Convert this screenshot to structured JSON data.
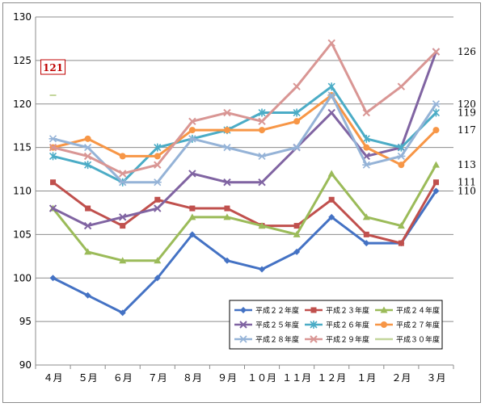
{
  "chart_data": {
    "type": "line",
    "categories": [
      "４月",
      "５月",
      "６月",
      "７月",
      "８月",
      "９月",
      "１０月",
      "１１月",
      "１２月",
      "１月",
      "２月",
      "３月"
    ],
    "ylim": [
      90,
      130
    ],
    "yticks": [
      90,
      95,
      100,
      105,
      110,
      115,
      120,
      125,
      130
    ],
    "grid": true,
    "legend_position": "bottom-right",
    "series": [
      {
        "name": "平成２２年度",
        "color": "#4472c4",
        "marker": "diamond",
        "values": [
          100,
          98,
          96,
          100,
          105,
          102,
          101,
          103,
          107,
          104,
          104,
          110
        ]
      },
      {
        "name": "平成２３年度",
        "color": "#c0504d",
        "marker": "square",
        "values": [
          111,
          108,
          106,
          109,
          108,
          108,
          106,
          106,
          109,
          105,
          104,
          111
        ]
      },
      {
        "name": "平成２４年度",
        "color": "#9bbb59",
        "marker": "triangle",
        "values": [
          108,
          103,
          102,
          102,
          107,
          107,
          106,
          105,
          112,
          107,
          106,
          113
        ]
      },
      {
        "name": "平成２５年度",
        "color": "#8064a2",
        "marker": "x",
        "values": [
          108,
          106,
          107,
          108,
          112,
          111,
          111,
          115,
          119,
          114,
          115,
          126
        ]
      },
      {
        "name": "平成２６年度",
        "color": "#4bacc6",
        "marker": "star",
        "values": [
          114,
          113,
          111,
          115,
          116,
          117,
          119,
          119,
          122,
          116,
          115,
          119
        ]
      },
      {
        "name": "平成２７年度",
        "color": "#f79646",
        "marker": "circle",
        "values": [
          115,
          116,
          114,
          114,
          117,
          117,
          117,
          118,
          121,
          115,
          113,
          117
        ]
      },
      {
        "name": "平成２８年度",
        "color": "#95b3d7",
        "marker": "plus",
        "values": [
          116,
          115,
          111,
          111,
          116,
          115,
          114,
          115,
          121,
          113,
          114,
          120
        ]
      },
      {
        "name": "平成２９年度",
        "color": "#d99694",
        "marker": "x",
        "values": [
          115,
          114,
          112,
          113,
          118,
          119,
          118,
          122,
          127,
          119,
          122,
          126
        ]
      },
      {
        "name": "平成３０年度",
        "color": "#c3d69b",
        "marker": "dash",
        "values": [
          121,
          null,
          null,
          null,
          null,
          null,
          null,
          null,
          null,
          null,
          null,
          null
        ]
      }
    ],
    "end_labels": [
      "126",
      "120",
      "119",
      "117",
      "113",
      "111",
      "110"
    ],
    "callout": {
      "text": "121",
      "series": "平成３０年度",
      "category": "４月"
    }
  }
}
